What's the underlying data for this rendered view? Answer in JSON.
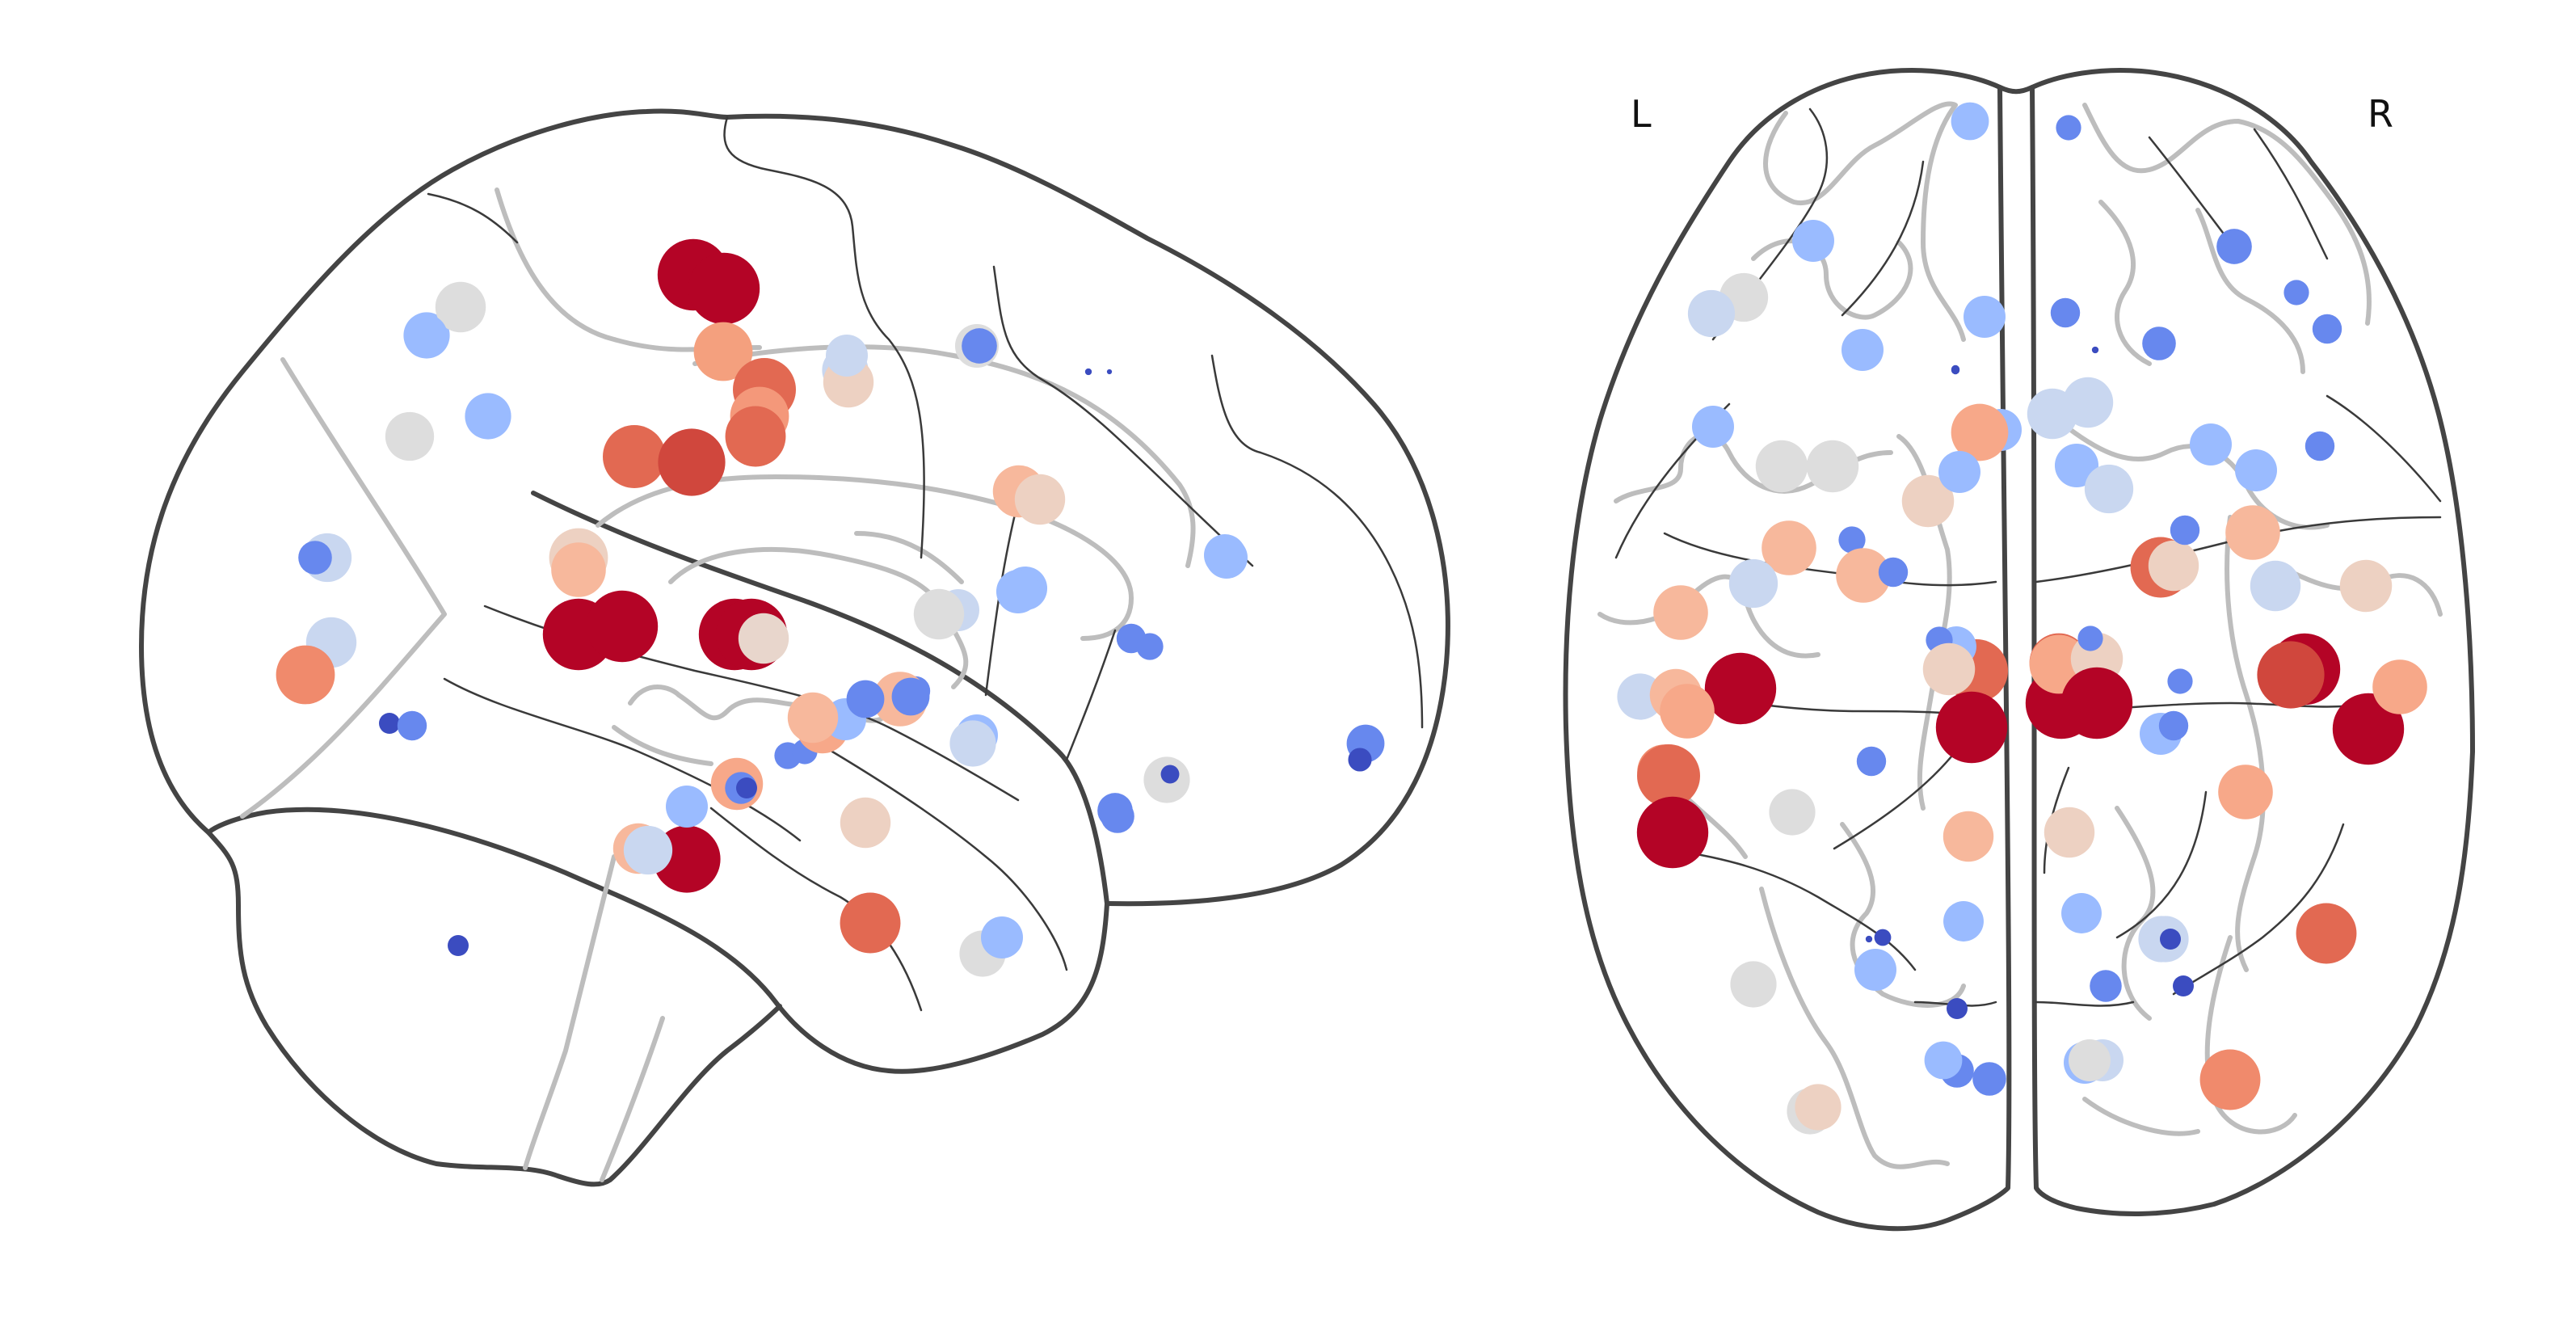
{
  "figure": {
    "left_label": "L",
    "right_label": "R"
  },
  "colormap": [
    "#3b4cc0",
    "#6788ee",
    "#9abbff",
    "#c9d7f0",
    "#dddddd",
    "#edd1c2",
    "#f7a889",
    "#e26952",
    "#b40426"
  ],
  "views": {
    "sagittal": {
      "nodes": [
        {
          "c": "#b40426",
          "s": 0.85
        },
        {
          "c": "#b40426",
          "s": 0.85
        },
        {
          "c": "#f4a07e",
          "s": 0.7
        },
        {
          "c": "#e26952",
          "s": 0.75
        },
        {
          "c": "#f4987a",
          "s": 0.7
        },
        {
          "c": "#e26952",
          "s": 0.72
        },
        {
          "c": "#e26952",
          "s": 0.75
        },
        {
          "c": "#d0473d",
          "s": 0.8
        },
        {
          "c": "#b40426",
          "s": 0.85
        },
        {
          "c": "#b40426",
          "s": 0.85
        },
        {
          "c": "#b40426",
          "s": 0.85
        },
        {
          "c": "#b40426",
          "s": 0.85
        },
        {
          "c": "#edd1c2",
          "s": 0.7
        },
        {
          "c": "#f7b89c",
          "s": 0.65
        },
        {
          "c": "#e8d6cc",
          "s": 0.6
        },
        {
          "c": "#9abbff",
          "s": 0.55
        },
        {
          "c": "#dddddd",
          "s": 0.6
        },
        {
          "c": "#dddddd",
          "s": 0.58
        },
        {
          "c": "#9abbff",
          "s": 0.55
        },
        {
          "c": "#c9d7f0",
          "s": 0.58
        },
        {
          "c": "#c9d7f0",
          "s": 0.6
        },
        {
          "c": "#6788ee",
          "s": 0.4
        },
        {
          "c": "#c9d7f0",
          "s": 0.55
        },
        {
          "c": "#edd1c2",
          "s": 0.6
        },
        {
          "c": "#f08a6c",
          "s": 0.7
        },
        {
          "c": "#3b4cc0",
          "s": 0.25
        },
        {
          "c": "#6788ee",
          "s": 0.35
        },
        {
          "c": "#3b4cc0",
          "s": 0.25
        },
        {
          "c": "#f7b89c",
          "s": 0.62
        },
        {
          "c": "#edd1c2",
          "s": 0.6
        },
        {
          "c": "#f7a889",
          "s": 0.62
        },
        {
          "c": "#6788ee",
          "s": 0.38
        },
        {
          "c": "#6788ee",
          "s": 0.32
        },
        {
          "c": "#6788ee",
          "s": 0.3
        },
        {
          "c": "#f7a889",
          "s": 0.62
        },
        {
          "c": "#9abbff",
          "s": 0.5
        },
        {
          "c": "#3b4cc0",
          "s": 0.28
        },
        {
          "c": "#6788ee",
          "s": 0.35
        },
        {
          "c": "#9abbff",
          "s": 0.52
        },
        {
          "c": "#c9d7f0",
          "s": 0.5
        },
        {
          "c": "#dddddd",
          "s": 0.6
        },
        {
          "c": "#f7b89c",
          "s": 0.65
        },
        {
          "c": "#f7b89c",
          "s": 0.6
        },
        {
          "c": "#b40426",
          "s": 0.8
        },
        {
          "c": "#9abbff",
          "s": 0.52
        },
        {
          "c": "#9abbff",
          "s": 0.5
        },
        {
          "c": "#e26952",
          "s": 0.72
        },
        {
          "c": "#edd1c2",
          "s": 0.6
        },
        {
          "c": "#dddddd",
          "s": 0.55
        },
        {
          "c": "#9abbff",
          "s": 0.5
        },
        {
          "c": "#f7b89c",
          "s": 0.6
        },
        {
          "c": "#c9d7f0",
          "s": 0.58
        },
        {
          "c": "#9abbff",
          "s": 0.5
        },
        {
          "c": "#3b4cc0",
          "s": 0.25
        },
        {
          "c": "#c9d7f0",
          "s": 0.55
        },
        {
          "c": "#6788ee",
          "s": 0.45
        },
        {
          "c": "#6788ee",
          "s": 0.45
        },
        {
          "c": "#dddddd",
          "s": 0.52
        },
        {
          "c": "#c9d7f0",
          "s": 0.5
        },
        {
          "c": "#6788ee",
          "s": 0.42
        },
        {
          "c": "#9abbff",
          "s": 0.5
        },
        {
          "c": "#9abbff",
          "s": 0.5
        },
        {
          "c": "#6788ee",
          "s": 0.35
        },
        {
          "c": "#6788ee",
          "s": 0.32
        },
        {
          "c": "#dddddd",
          "s": 0.55
        },
        {
          "c": "#3b4cc0",
          "s": 0.22
        },
        {
          "c": "#6788ee",
          "s": 0.42
        },
        {
          "c": "#6788ee",
          "s": 0.4
        },
        {
          "c": "#dddddd",
          "s": 0.55
        },
        {
          "c": "#9abbff",
          "s": 0.52
        },
        {
          "c": "#6788ee",
          "s": 0.45
        },
        {
          "c": "#3b4cc0",
          "s": 0.28
        },
        {
          "c": "#3b4cc0",
          "s": 0.08
        },
        {
          "c": "#3b4cc0",
          "s": 0.06
        }
      ]
    },
    "axial": {
      "nodes": [
        {
          "c": "#9abbff",
          "s": 0.45
        },
        {
          "c": "#6788ee",
          "s": 0.3
        },
        {
          "c": "#9abbff",
          "s": 0.5
        },
        {
          "c": "#6788ee",
          "s": 0.42
        },
        {
          "c": "#dddddd",
          "s": 0.58
        },
        {
          "c": "#c9d7f0",
          "s": 0.56
        },
        {
          "c": "#9abbff",
          "s": 0.5
        },
        {
          "c": "#6788ee",
          "s": 0.35
        },
        {
          "c": "#6788ee",
          "s": 0.3
        },
        {
          "c": "#6788ee",
          "s": 0.35
        },
        {
          "c": "#9abbff",
          "s": 0.5
        },
        {
          "c": "#6788ee",
          "s": 0.4
        },
        {
          "c": "#9abbff",
          "s": 0.5
        },
        {
          "c": "#9abbff",
          "s": 0.5
        },
        {
          "c": "#c9d7f0",
          "s": 0.6
        },
        {
          "c": "#9abbff",
          "s": 0.52
        },
        {
          "c": "#6788ee",
          "s": 0.35
        },
        {
          "c": "#3b4cc0",
          "s": 0.1
        },
        {
          "c": "#3b4cc0",
          "s": 0.08
        },
        {
          "c": "#9abbff",
          "s": 0.5
        },
        {
          "c": "#dddddd",
          "s": 0.62
        },
        {
          "c": "#dddddd",
          "s": 0.62
        },
        {
          "c": "#f7a889",
          "s": 0.68
        },
        {
          "c": "#edd1c2",
          "s": 0.62
        },
        {
          "c": "#c9d7f0",
          "s": 0.6
        },
        {
          "c": "#c9d7f0",
          "s": 0.58
        },
        {
          "c": "#9abbff",
          "s": 0.5
        },
        {
          "c": "#9abbff",
          "s": 0.5
        },
        {
          "c": "#f7b89c",
          "s": 0.65
        },
        {
          "c": "#c9d7f0",
          "s": 0.58
        },
        {
          "c": "#6788ee",
          "s": 0.32
        },
        {
          "c": "#f7b89c",
          "s": 0.65
        },
        {
          "c": "#e26952",
          "s": 0.72
        },
        {
          "c": "#edd1c2",
          "s": 0.6
        },
        {
          "c": "#6788ee",
          "s": 0.35
        },
        {
          "c": "#f7b89c",
          "s": 0.65
        },
        {
          "c": "#c9d7f0",
          "s": 0.6
        },
        {
          "c": "#edd1c2",
          "s": 0.62
        },
        {
          "c": "#6788ee",
          "s": 0.35
        },
        {
          "c": "#f7b89c",
          "s": 0.65
        },
        {
          "c": "#c9d7f0",
          "s": 0.55
        },
        {
          "c": "#f7b89c",
          "s": 0.62
        },
        {
          "c": "#e26952",
          "s": 0.75
        },
        {
          "c": "#b40426",
          "s": 0.85
        },
        {
          "c": "#9abbff",
          "s": 0.48
        },
        {
          "c": "#6788ee",
          "s": 0.32
        },
        {
          "c": "#edd1c2",
          "s": 0.62
        },
        {
          "c": "#e26952",
          "s": 0.7
        },
        {
          "c": "#b40426",
          "s": 0.85
        },
        {
          "c": "#f7a889",
          "s": 0.7
        },
        {
          "c": "#edd1c2",
          "s": 0.62
        },
        {
          "c": "#b40426",
          "s": 0.85
        },
        {
          "c": "#6788ee",
          "s": 0.3
        },
        {
          "c": "#6788ee",
          "s": 0.3
        },
        {
          "c": "#9abbff",
          "s": 0.5
        },
        {
          "c": "#b40426",
          "s": 0.85
        },
        {
          "c": "#f7a889",
          "s": 0.65
        },
        {
          "c": "#b40426",
          "s": 0.85
        },
        {
          "c": "#d0473d",
          "s": 0.8
        },
        {
          "c": "#b40426",
          "s": 0.85
        },
        {
          "c": "#f7a889",
          "s": 0.65
        },
        {
          "c": "#f08a6c",
          "s": 0.65
        },
        {
          "c": "#e26952",
          "s": 0.75
        },
        {
          "c": "#b40426",
          "s": 0.85
        },
        {
          "c": "#dddddd",
          "s": 0.55
        },
        {
          "c": "#6788ee",
          "s": 0.35
        },
        {
          "c": "#f7b89c",
          "s": 0.6
        },
        {
          "c": "#edd1c2",
          "s": 0.6
        },
        {
          "c": "#9abbff",
          "s": 0.48
        },
        {
          "c": "#9abbff",
          "s": 0.48
        },
        {
          "c": "#c9d7f0",
          "s": 0.55
        },
        {
          "c": "#f7a889",
          "s": 0.65
        },
        {
          "c": "#e26952",
          "s": 0.72
        },
        {
          "c": "#3b4cc0",
          "s": 0.08
        },
        {
          "c": "#9abbff",
          "s": 0.5
        },
        {
          "c": "#3b4cc0",
          "s": 0.2
        },
        {
          "c": "#dddddd",
          "s": 0.55
        },
        {
          "c": "#6788ee",
          "s": 0.38
        },
        {
          "c": "#c9d7f0",
          "s": 0.55
        },
        {
          "c": "#3b4cc0",
          "s": 0.25
        },
        {
          "c": "#dddddd",
          "s": 0.55
        },
        {
          "c": "#6788ee",
          "s": 0.4
        },
        {
          "c": "#6788ee",
          "s": 0.4
        },
        {
          "c": "#9abbff",
          "s": 0.5
        },
        {
          "c": "#c9d7f0",
          "s": 0.5
        },
        {
          "c": "#9abbff",
          "s": 0.45
        },
        {
          "c": "#edd1c2",
          "s": 0.55
        },
        {
          "c": "#f08a6c",
          "s": 0.72
        },
        {
          "c": "#3b4cc0",
          "s": 0.1
        },
        {
          "c": "#3b4cc0",
          "s": 0.25
        },
        {
          "c": "#dddddd",
          "s": 0.5
        },
        {
          "c": "#3b4cc0",
          "s": 0.25
        },
        {
          "c": "#6788ee",
          "s": 0.35
        }
      ]
    }
  }
}
